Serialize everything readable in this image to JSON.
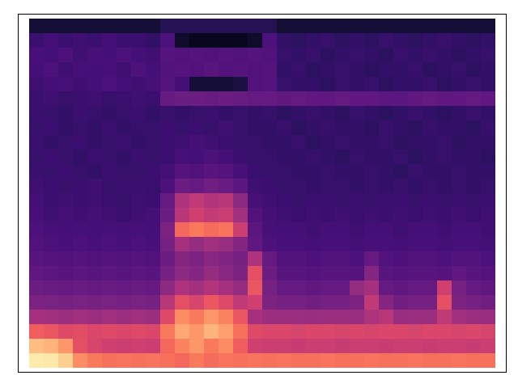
{
  "chart_data": {
    "type": "heatmap",
    "color": "magma",
    "color_range": [
      0,
      10
    ],
    "tick_labels": false,
    "cells": [
      [
        1,
        1,
        1,
        1,
        1,
        1,
        1,
        1,
        1,
        1.5,
        1.5,
        1.5,
        1.5,
        1.5,
        1.5,
        1.5,
        1.5,
        1,
        1,
        1,
        1,
        1,
        1,
        1,
        1,
        1,
        1,
        1,
        1,
        1,
        1,
        1
      ],
      [
        2,
        2.2,
        2,
        2.1,
        2,
        2.2,
        2,
        2,
        1.8,
        2.4,
        0.8,
        0.6,
        0.6,
        0.6,
        0.6,
        0.8,
        2.4,
        1.8,
        1.7,
        1.8,
        1.9,
        1.7,
        1.8,
        1.7,
        1.9,
        1.8,
        1.7,
        1.8,
        1.9,
        1.8,
        1.7,
        1.8
      ],
      [
        2.3,
        2.2,
        2.4,
        2.1,
        2.3,
        2.2,
        2.4,
        2.2,
        2.1,
        2.6,
        2.5,
        2.6,
        2.5,
        2.6,
        2.5,
        2.6,
        2.5,
        1.9,
        1.8,
        1.9,
        1.7,
        1.8,
        1.9,
        1.8,
        1.7,
        1.9,
        1.8,
        1.9,
        1.8,
        1.7,
        1.8,
        1.9
      ],
      [
        2.2,
        2.4,
        2.1,
        2.3,
        2.2,
        2.3,
        2.1,
        2.4,
        2.2,
        2.5,
        2.6,
        2.5,
        2.7,
        2.5,
        2.6,
        2.5,
        2.6,
        1.8,
        1.9,
        1.7,
        1.8,
        1.9,
        1.8,
        1.7,
        1.8,
        1.8,
        1.9,
        1.7,
        1.8,
        1.9,
        1.7,
        1.8
      ],
      [
        2.1,
        2.2,
        2.3,
        2.1,
        2.2,
        2.4,
        2.2,
        2.1,
        2.3,
        2.6,
        2.2,
        1.0,
        1.0,
        1.0,
        1.2,
        2.5,
        2.6,
        1.9,
        1.8,
        1.8,
        1.7,
        1.9,
        1.8,
        1.9,
        1.7,
        1.8,
        1.8,
        1.9,
        1.7,
        1.8,
        1.9,
        1.8
      ],
      [
        2.0,
        2.1,
        1.9,
        2.0,
        2.1,
        1.9,
        2.0,
        2.1,
        2.0,
        3.0,
        3.2,
        3.2,
        3.1,
        3.2,
        3.1,
        3.0,
        3.0,
        2.9,
        3.0,
        2.9,
        2.9,
        3.0,
        2.9,
        2.9,
        2.8,
        2.8,
        2.9,
        3.0,
        2.9,
        2.9,
        3.0,
        2.9
      ],
      [
        2.0,
        1.9,
        1.8,
        2.0,
        1.9,
        1.8,
        1.9,
        2.0,
        1.8,
        1.9,
        1.8,
        1.9,
        2.0,
        1.8,
        1.9,
        1.8,
        1.9,
        1.7,
        1.8,
        1.9,
        1.8,
        1.7,
        1.9,
        1.8,
        1.7,
        1.8,
        1.9,
        1.8,
        1.7,
        1.8,
        1.9,
        1.8
      ],
      [
        1.9,
        2.0,
        1.8,
        1.9,
        1.8,
        2.0,
        1.8,
        1.9,
        1.9,
        2.0,
        1.9,
        2.0,
        1.9,
        2.1,
        1.9,
        1.8,
        1.8,
        1.9,
        1.7,
        1.8,
        1.9,
        1.8,
        1.8,
        1.7,
        1.9,
        1.8,
        1.7,
        1.9,
        1.8,
        1.8,
        1.7,
        1.9
      ],
      [
        2.0,
        1.8,
        1.9,
        2.0,
        1.8,
        1.9,
        2.0,
        1.8,
        1.9,
        2.0,
        2.1,
        2.2,
        2.1,
        2.0,
        1.9,
        1.9,
        1.8,
        1.8,
        1.9,
        1.7,
        1.8,
        1.9,
        1.8,
        1.8,
        1.9,
        1.7,
        1.8,
        1.8,
        1.9,
        1.7,
        1.8,
        1.8
      ],
      [
        1.9,
        2.0,
        1.9,
        1.8,
        2.0,
        1.9,
        1.8,
        2.0,
        1.9,
        2.0,
        2.3,
        2.2,
        2.4,
        2.2,
        2.0,
        1.9,
        1.9,
        1.8,
        1.8,
        1.9,
        1.8,
        1.7,
        1.9,
        1.8,
        1.8,
        1.9,
        1.7,
        1.8,
        1.9,
        1.8,
        1.8,
        1.7
      ],
      [
        2.0,
        1.9,
        2.0,
        1.9,
        1.8,
        2.0,
        1.9,
        1.9,
        2.0,
        2.2,
        2.6,
        2.5,
        2.7,
        2.6,
        2.3,
        2.0,
        1.9,
        1.9,
        1.8,
        1.8,
        1.9,
        1.8,
        1.8,
        1.9,
        1.8,
        1.7,
        1.9,
        1.8,
        1.8,
        1.9,
        1.8,
        1.8
      ],
      [
        2.1,
        2.0,
        1.9,
        2.0,
        2.1,
        1.9,
        2.0,
        2.0,
        1.9,
        2.4,
        3.2,
        3.0,
        3.3,
        3.1,
        2.8,
        2.1,
        2.0,
        1.9,
        1.9,
        1.8,
        1.9,
        1.9,
        1.8,
        1.9,
        1.8,
        1.9,
        1.8,
        1.9,
        1.8,
        1.9,
        1.8,
        1.9
      ],
      [
        2.2,
        2.0,
        2.1,
        2.0,
        2.1,
        2.0,
        1.9,
        2.1,
        2.0,
        3.0,
        4.8,
        5.2,
        4.9,
        5.0,
        4.0,
        2.3,
        2.1,
        2.0,
        1.9,
        2.0,
        2.0,
        1.9,
        2.0,
        1.9,
        2.0,
        2.0,
        1.9,
        2.0,
        1.9,
        2.0,
        1.9,
        2.0
      ],
      [
        2.3,
        2.1,
        2.2,
        2.1,
        2.2,
        2.1,
        2.0,
        2.1,
        2.2,
        3.2,
        5.0,
        5.6,
        5.3,
        5.5,
        4.5,
        2.5,
        2.2,
        2.1,
        2.0,
        2.1,
        2.0,
        2.1,
        2.0,
        2.1,
        2.0,
        2.1,
        2.0,
        2.1,
        2.0,
        2.1,
        2.0,
        2.1
      ],
      [
        2.4,
        2.3,
        2.2,
        2.3,
        2.2,
        2.3,
        2.2,
        2.3,
        2.2,
        3.6,
        6.8,
        7.2,
        6.9,
        7.1,
        5.5,
        2.8,
        2.3,
        2.2,
        2.2,
        2.1,
        2.2,
        2.2,
        2.1,
        2.2,
        2.2,
        2.1,
        2.2,
        2.2,
        2.1,
        2.2,
        2.2,
        2.1
      ],
      [
        2.5,
        2.4,
        2.3,
        2.4,
        2.3,
        2.4,
        2.3,
        2.4,
        2.3,
        3.4,
        4.6,
        4.2,
        4.5,
        4.3,
        3.8,
        2.9,
        2.4,
        2.3,
        2.3,
        2.2,
        2.3,
        2.3,
        2.2,
        2.3,
        2.3,
        2.2,
        2.3,
        2.3,
        2.2,
        2.3,
        2.3,
        2.2
      ],
      [
        2.7,
        2.6,
        2.5,
        2.6,
        2.5,
        2.6,
        2.5,
        2.6,
        2.5,
        3.2,
        3.8,
        3.6,
        3.9,
        3.7,
        3.4,
        4.8,
        3.0,
        2.5,
        2.5,
        2.4,
        2.5,
        2.5,
        2.4,
        3.0,
        2.5,
        2.4,
        2.5,
        2.5,
        2.4,
        2.5,
        2.5,
        2.4
      ],
      [
        2.9,
        2.8,
        2.7,
        2.8,
        2.7,
        2.8,
        2.7,
        2.8,
        2.7,
        3.4,
        4.0,
        3.8,
        4.2,
        3.9,
        3.6,
        6.2,
        3.2,
        2.7,
        2.7,
        2.6,
        2.7,
        2.7,
        2.6,
        3.8,
        2.7,
        2.6,
        2.7,
        2.7,
        2.6,
        2.9,
        2.7,
        2.6
      ],
      [
        3.2,
        3.1,
        3.0,
        3.1,
        3.0,
        3.1,
        3.0,
        3.1,
        3.0,
        4.0,
        4.8,
        4.5,
        4.9,
        4.6,
        4.2,
        6.4,
        3.4,
        3.0,
        3.0,
        2.9,
        3.0,
        3.0,
        4.2,
        4.6,
        3.0,
        2.9,
        3.0,
        3.0,
        5.6,
        3.4,
        3.0,
        2.9
      ],
      [
        3.6,
        3.5,
        3.4,
        3.5,
        3.4,
        3.5,
        3.4,
        3.5,
        3.4,
        5.0,
        6.2,
        5.8,
        6.4,
        6.0,
        5.2,
        5.6,
        3.6,
        3.4,
        3.4,
        3.3,
        3.4,
        3.4,
        3.6,
        5.2,
        3.8,
        3.3,
        3.4,
        3.4,
        6.2,
        3.6,
        3.4,
        3.3
      ],
      [
        4.6,
        4.5,
        4.4,
        4.5,
        4.4,
        4.5,
        4.4,
        4.5,
        4.4,
        6.0,
        7.6,
        7.2,
        7.8,
        7.4,
        6.4,
        4.6,
        4.4,
        4.4,
        4.4,
        4.3,
        4.4,
        4.4,
        4.3,
        4.8,
        5.0,
        4.3,
        4.4,
        4.4,
        5.2,
        4.5,
        4.4,
        4.3
      ],
      [
        6.6,
        6.4,
        6.0,
        6.1,
        5.9,
        6.0,
        5.9,
        6.0,
        5.9,
        7.2,
        8.2,
        7.8,
        8.4,
        8.0,
        7.0,
        6.0,
        5.9,
        5.9,
        5.8,
        5.9,
        5.9,
        5.8,
        5.9,
        5.8,
        5.9,
        5.9,
        5.8,
        5.9,
        5.9,
        5.8,
        5.9,
        5.8
      ],
      [
        8.6,
        8.4,
        7.8,
        6.2,
        5.8,
        5.6,
        5.5,
        5.6,
        5.5,
        6.8,
        7.4,
        7.8,
        7.2,
        7.6,
        6.6,
        5.6,
        5.5,
        5.5,
        5.4,
        5.5,
        5.5,
        5.4,
        5.5,
        5.5,
        5.4,
        5.5,
        5.5,
        5.4,
        5.5,
        5.5,
        5.4,
        5.5
      ],
      [
        9.6,
        9.5,
        9.0,
        7.6,
        7.2,
        7.0,
        7.1,
        7.0,
        7.1,
        7.0,
        6.8,
        7.2,
        6.9,
        7.1,
        7.0,
        7.1,
        7.0,
        7.1,
        7.0,
        7.0,
        7.1,
        7.0,
        7.0,
        7.1,
        7.0,
        7.0,
        7.1,
        7.0,
        7.0,
        7.1,
        7.0,
        7.0
      ]
    ]
  }
}
